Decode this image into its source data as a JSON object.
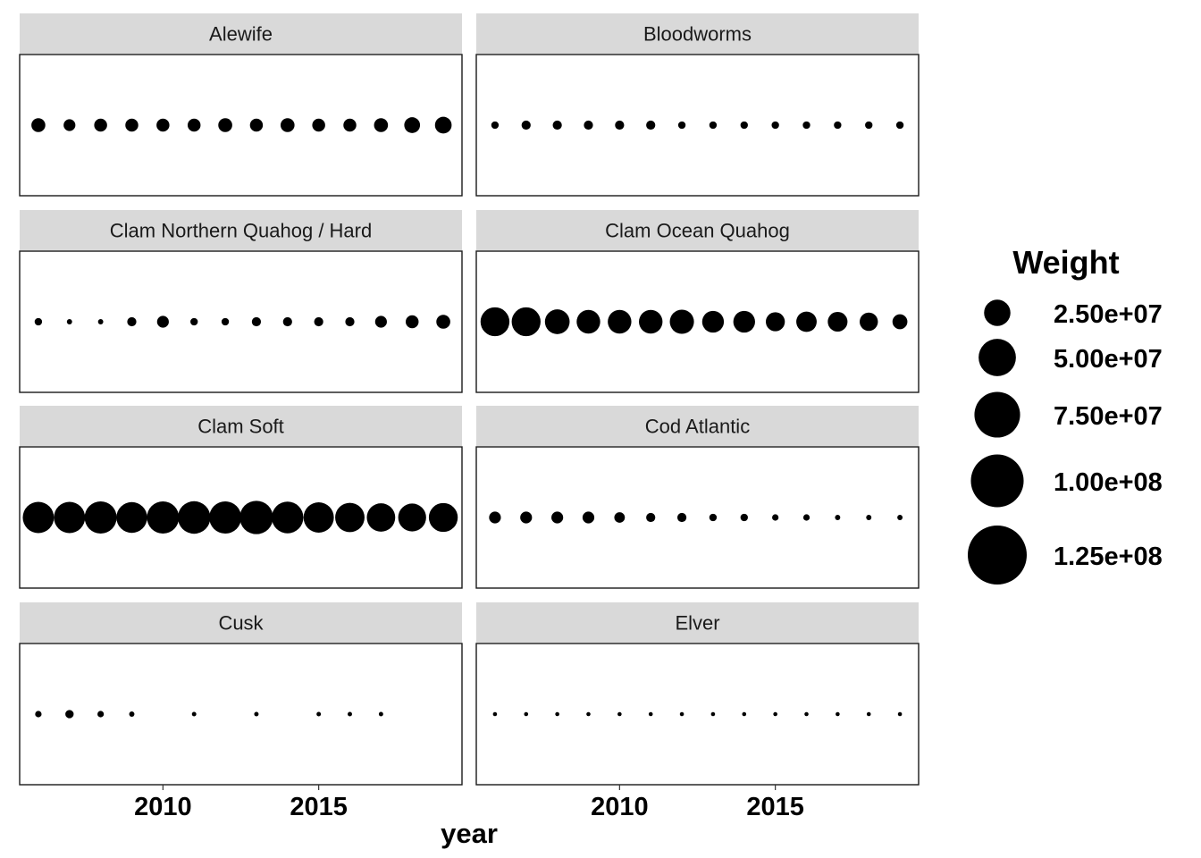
{
  "chart_data": {
    "type": "scatter",
    "facet_by": "species",
    "x": [
      2006,
      2007,
      2008,
      2009,
      2010,
      2011,
      2012,
      2013,
      2014,
      2015,
      2016,
      2017,
      2018,
      2019
    ],
    "xlabel": "year",
    "x_ticks": [
      "2010",
      "2015"
    ],
    "xlim": [
      2005.4,
      2019.6
    ],
    "size_legend": {
      "title": "Weight",
      "breaks": [
        25000000,
        50000000,
        75000000,
        100000000,
        125000000
      ],
      "labels": [
        "2.50e+07",
        "5.00e+07",
        "7.50e+07",
        "1.00e+08",
        "1.25e+08"
      ],
      "placement": "right"
    },
    "facets": [
      {
        "name": "Alewife",
        "values": [
          7000000,
          5000000,
          6000000,
          6000000,
          6000000,
          6000000,
          7000000,
          6000000,
          7000000,
          6000000,
          6000000,
          7000000,
          9000000,
          10000000
        ]
      },
      {
        "name": "Bloodworms",
        "values": [
          2000000,
          3000000,
          3000000,
          3000000,
          3000000,
          3000000,
          2000000,
          2000000,
          2000000,
          2000000,
          2000000,
          2000000,
          2000000,
          2000000
        ]
      },
      {
        "name": "Clam Northern Quahog / Hard",
        "values": [
          2000000,
          1000000,
          1000000,
          3000000,
          5000000,
          2000000,
          2000000,
          3000000,
          3000000,
          3000000,
          3000000,
          5000000,
          6000000,
          7000000
        ]
      },
      {
        "name": "Clam Ocean Quahog",
        "values": [
          30000000,
          30000000,
          22000000,
          20000000,
          20000000,
          20000000,
          21000000,
          17000000,
          17000000,
          13000000,
          15000000,
          14000000,
          12000000,
          8000000
        ]
      },
      {
        "name": "Clam Soft",
        "values": [
          35000000,
          35000000,
          37000000,
          34000000,
          37000000,
          38000000,
          37000000,
          40000000,
          36000000,
          33000000,
          31000000,
          29000000,
          28000000,
          30000000
        ]
      },
      {
        "name": "Cod Atlantic",
        "values": [
          5000000,
          5000000,
          5000000,
          5000000,
          4000000,
          3000000,
          3000000,
          2000000,
          2000000,
          1500000,
          1500000,
          1000000,
          1000000,
          1000000
        ]
      },
      {
        "name": "Cusk",
        "values": [
          1500000,
          2500000,
          1500000,
          1000000,
          null,
          700000,
          null,
          700000,
          null,
          700000,
          700000,
          700000,
          null,
          null
        ]
      },
      {
        "name": "Elver",
        "values": [
          600000,
          600000,
          600000,
          600000,
          600000,
          600000,
          600000,
          600000,
          600000,
          600000,
          600000,
          600000,
          600000,
          600000
        ]
      }
    ]
  }
}
